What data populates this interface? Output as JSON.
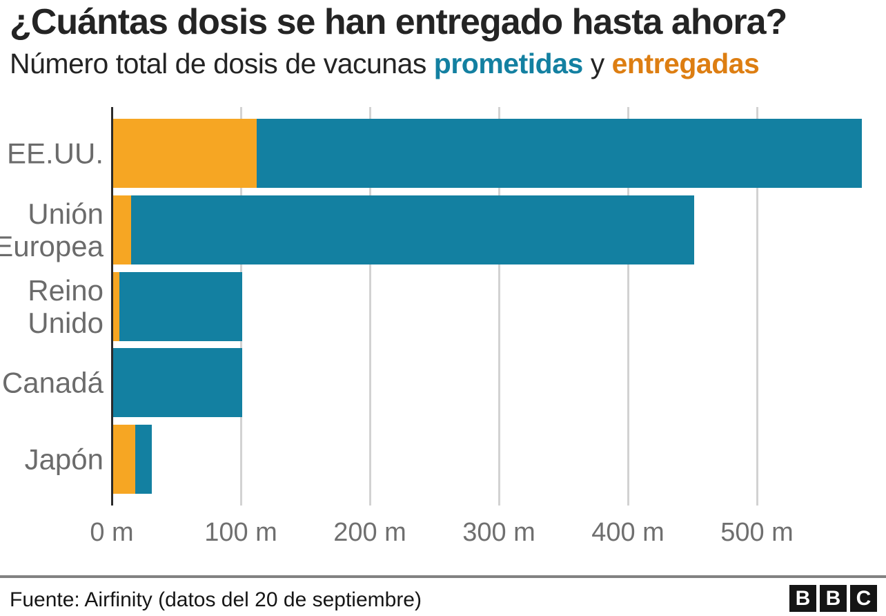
{
  "title": "¿Cuántas dosis se han entregado hasta ahora?",
  "subtitle": {
    "prefix": "Número total de dosis de vacunas ",
    "promised_label": "prometidas",
    "connector": " y ",
    "delivered_label": "entregadas"
  },
  "colors": {
    "promised_bar": "#1380A1",
    "delivered_bar": "#F6A623",
    "promised_text": "#1380A1",
    "delivered_text": "#DD7E12",
    "grid": "#D2D2D2",
    "axis": "#2B2B2B",
    "label_gray": "#6B6B6B"
  },
  "chart_data": {
    "type": "bar",
    "orientation": "horizontal",
    "title": "¿Cuántas dosis se han entregado hasta ahora?",
    "subtitle": "Número total de dosis de vacunas prometidas y entregadas",
    "unit": "millones de dosis (m)",
    "categories": [
      "EE.UU.",
      "Unión Europea",
      "Reino Unido",
      "Canadá",
      "Japón"
    ],
    "categories_display": [
      "EE.UU.",
      "Unión\nEuropea",
      "Reino\nUnido",
      "Canadá",
      "Japón"
    ],
    "series": [
      {
        "name": "prometidas",
        "color": "#1380A1",
        "values": [
          580,
          450,
          100,
          100,
          30
        ]
      },
      {
        "name": "entregadas",
        "color": "#F6A623",
        "values": [
          111,
          14,
          5,
          0,
          17
        ]
      }
    ],
    "x_ticks": [
      "0 m",
      "100 m",
      "200 m",
      "300 m",
      "400 m",
      "500 m"
    ],
    "x_tick_values": [
      0,
      100,
      200,
      300,
      400,
      500
    ],
    "xlim": [
      0,
      600
    ],
    "grid": true,
    "legend_position": "in-subtitle"
  },
  "footer": {
    "source": "Fuente: Airfinity (datos del 20 de septiembre)",
    "logo_letters": [
      "B",
      "B",
      "C"
    ]
  }
}
